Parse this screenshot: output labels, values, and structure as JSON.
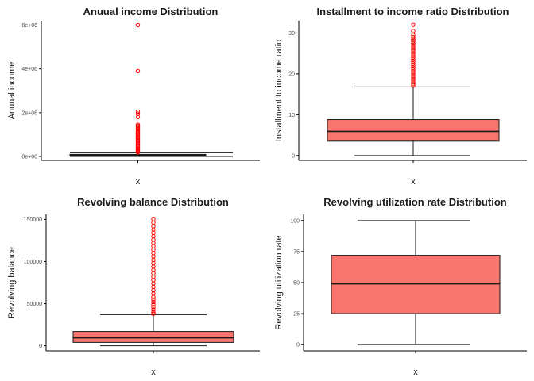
{
  "colors": {
    "box_fill": "#F8766D",
    "outlier": "#FF0000",
    "line": "#1a1a1a",
    "axis": "#000000",
    "tick_text": "#4d4d4d"
  },
  "chart_data": [
    {
      "type": "boxplot",
      "title": "Anuual income Distribution",
      "xlabel": "x",
      "ylabel": "Anuual income",
      "ylim": [
        -180000,
        6200000
      ],
      "yticks": [
        0,
        2000000,
        4000000,
        6000000
      ],
      "ytick_labels": [
        "0e+00",
        "2e+06",
        "4e+06",
        "6e+06"
      ],
      "box": {
        "q1": 45000,
        "median": 65000,
        "q3": 95000,
        "whisker_low": 0,
        "whisker_high": 170000
      },
      "outliers": [
        6000000,
        3900000,
        2050000,
        1950000,
        1800000,
        1450000,
        1400000,
        1350000,
        1300000,
        1250000,
        1200000,
        1150000,
        1100000,
        1050000,
        1000000,
        950000,
        900000,
        850000,
        800000,
        750000,
        700000,
        650000,
        600000,
        550000,
        500000,
        450000,
        400000,
        350000,
        300000,
        260000,
        220000,
        190000
      ]
    },
    {
      "type": "boxplot",
      "title": "Installment to income ratio Distribution",
      "xlabel": "x",
      "ylabel": "Installment to income ratio",
      "ylim": [
        -1.2,
        33
      ],
      "yticks": [
        0,
        10,
        20,
        30
      ],
      "ytick_labels": [
        "0",
        "10",
        "20",
        "30"
      ],
      "box": {
        "q1": 3.5,
        "median": 5.9,
        "q3": 8.8,
        "whisker_low": 0,
        "whisker_high": 16.8
      },
      "outliers": [
        32,
        30.5,
        29.5,
        29,
        28.5,
        28,
        27.5,
        27,
        26.5,
        26,
        25.5,
        25,
        24.5,
        24,
        23.5,
        23,
        22.5,
        22,
        21.5,
        21,
        20.5,
        20,
        19.5,
        19,
        18.5,
        18,
        17.5,
        17.1
      ]
    },
    {
      "type": "boxplot",
      "title": "Revolving balance Distribution",
      "xlabel": "x",
      "ylabel": "Revolving balance",
      "ylim": [
        -6000,
        156000
      ],
      "yticks": [
        0,
        50000,
        100000,
        150000
      ],
      "ytick_labels": [
        "0",
        "50000",
        "100000",
        "150000"
      ],
      "box": {
        "q1": 4000,
        "median": 9500,
        "q3": 17000,
        "whisker_low": 0,
        "whisker_high": 37000
      },
      "outliers": [
        150000,
        146000,
        142000,
        138000,
        134000,
        130000,
        126000,
        122000,
        118000,
        114000,
        110000,
        106000,
        102000,
        98000,
        94000,
        90000,
        86000,
        82000,
        78000,
        74000,
        70000,
        66000,
        62000,
        58000,
        55000,
        52000,
        49000,
        46000,
        43000,
        40000,
        38000
      ]
    },
    {
      "type": "boxplot",
      "title": "Revolving utilization rate Distribution",
      "xlabel": "x",
      "ylabel": "Revolving utilization rate",
      "ylim": [
        -5,
        105
      ],
      "yticks": [
        0,
        25,
        50,
        75,
        100
      ],
      "ytick_labels": [
        "0",
        "25",
        "50",
        "75",
        "100"
      ],
      "box": {
        "q1": 25,
        "median": 49,
        "q3": 72,
        "whisker_low": 0,
        "whisker_high": 100
      },
      "outliers": []
    }
  ]
}
